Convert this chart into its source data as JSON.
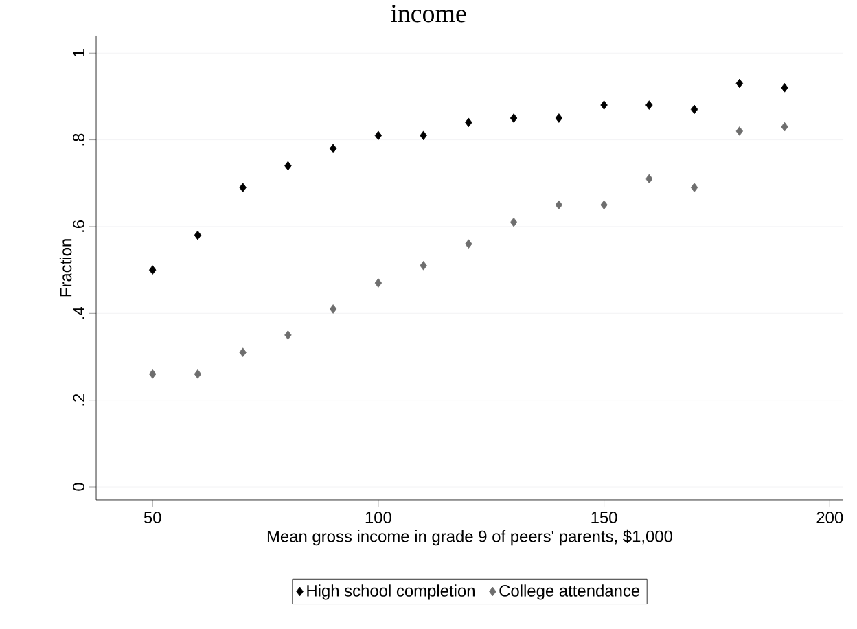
{
  "chart_data": {
    "type": "scatter",
    "title": "income",
    "xlabel": "Mean gross income in grade 9 of peers' parents, $1,000",
    "ylabel": "Fraction",
    "x": [
      50,
      60,
      70,
      80,
      90,
      100,
      110,
      120,
      130,
      140,
      150,
      160,
      170,
      180,
      190
    ],
    "series": [
      {
        "name": "High school completion",
        "color": "#000000",
        "values": [
          0.5,
          0.58,
          0.69,
          0.74,
          0.78,
          0.81,
          0.81,
          0.84,
          0.85,
          0.85,
          0.88,
          0.88,
          0.87,
          0.93,
          0.92
        ]
      },
      {
        "name": "College attendance",
        "color": "#6e6e6e",
        "values": [
          0.26,
          0.26,
          0.31,
          0.35,
          0.41,
          0.47,
          0.51,
          0.56,
          0.61,
          0.65,
          0.65,
          0.71,
          0.69,
          0.82,
          0.83
        ]
      }
    ],
    "xlim": [
      37.5,
      203
    ],
    "xticks": [
      50,
      100,
      150,
      200
    ],
    "ylim": [
      -0.03,
      1.04
    ],
    "yticks": [
      {
        "value": 0,
        "label": "0"
      },
      {
        "value": 0.2,
        "label": ".2"
      },
      {
        "value": 0.4,
        "label": ".4"
      },
      {
        "value": 0.6,
        "label": ".6"
      },
      {
        "value": 0.8,
        "label": ".8"
      },
      {
        "value": 1,
        "label": "1"
      }
    ],
    "grid": "y",
    "legend": "bottom",
    "marker": "diamond"
  }
}
